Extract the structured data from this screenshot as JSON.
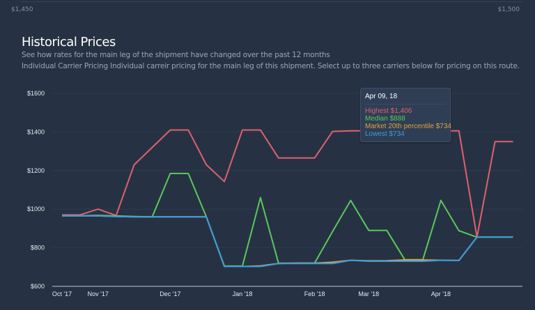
{
  "header": {
    "range_min": "$1,450",
    "range_max": "$1,500"
  },
  "section": {
    "title": "Historical Prices",
    "subtitle": "See how rates for the main leg of the shipment have changed over the past 12 months",
    "description": "Individual Carrier Pricing Individual carreir pricing for the main leg of this shipment. Select up to three carriers below for pricing on this route."
  },
  "tooltip": {
    "date": "Apr 09, 18",
    "rows": [
      {
        "label": "Highest $1,406",
        "color": "#e0606e"
      },
      {
        "label": "Median $888",
        "color": "#5ac85a"
      },
      {
        "label": "Market 20th percentile $734",
        "color": "#e0a040"
      },
      {
        "label": "Lowest $734",
        "color": "#3a9be0"
      }
    ]
  },
  "chart_data": {
    "type": "line",
    "ylim": [
      600,
      1600
    ],
    "yticks": [
      600,
      800,
      1000,
      1200,
      1400,
      1600
    ],
    "ytick_labels": [
      "$600",
      "$800",
      "$1000",
      "$1200",
      "$1400",
      "$1600"
    ],
    "xtick_labels": [
      {
        "index": 0,
        "label": "Oct '17"
      },
      {
        "index": 2,
        "label": "Nov '17"
      },
      {
        "index": 6,
        "label": "Dec '17"
      },
      {
        "index": 10,
        "label": "Jan '18"
      },
      {
        "index": 14,
        "label": "Feb '18"
      },
      {
        "index": 17,
        "label": "Mar '18"
      },
      {
        "index": 21,
        "label": "Apr '18"
      }
    ],
    "grid": true,
    "series": [
      {
        "name": "Highest",
        "color": "#e0606e",
        "values": [
          970,
          970,
          1000,
          967,
          1230,
          1320,
          1410,
          1410,
          1230,
          1143,
          1410,
          1410,
          1265,
          1265,
          1265,
          1403,
          1406,
          1406,
          1406,
          1406,
          1406,
          1406,
          1406,
          855,
          1350,
          1350
        ]
      },
      {
        "name": "Median",
        "color": "#5ac85a",
        "values": [
          965,
          965,
          968,
          965,
          962,
          960,
          1185,
          1185,
          960,
          705,
          705,
          1060,
          720,
          720,
          720,
          885,
          1045,
          890,
          890,
          738,
          738,
          1045,
          888,
          855,
          855,
          855
        ]
      },
      {
        "name": "Market 20th percentile",
        "color": "#e0a040",
        "values": [
          965,
          965,
          965,
          962,
          960,
          960,
          960,
          960,
          960,
          703,
          703,
          706,
          718,
          720,
          720,
          725,
          735,
          732,
          733,
          737,
          737,
          735,
          734,
          855,
          855,
          855
        ]
      },
      {
        "name": "Lowest",
        "color": "#3a9be0",
        "values": [
          965,
          965,
          965,
          962,
          960,
          960,
          960,
          960,
          960,
          703,
          703,
          703,
          718,
          718,
          718,
          718,
          735,
          730,
          730,
          730,
          730,
          735,
          734,
          855,
          855,
          855
        ]
      }
    ]
  }
}
